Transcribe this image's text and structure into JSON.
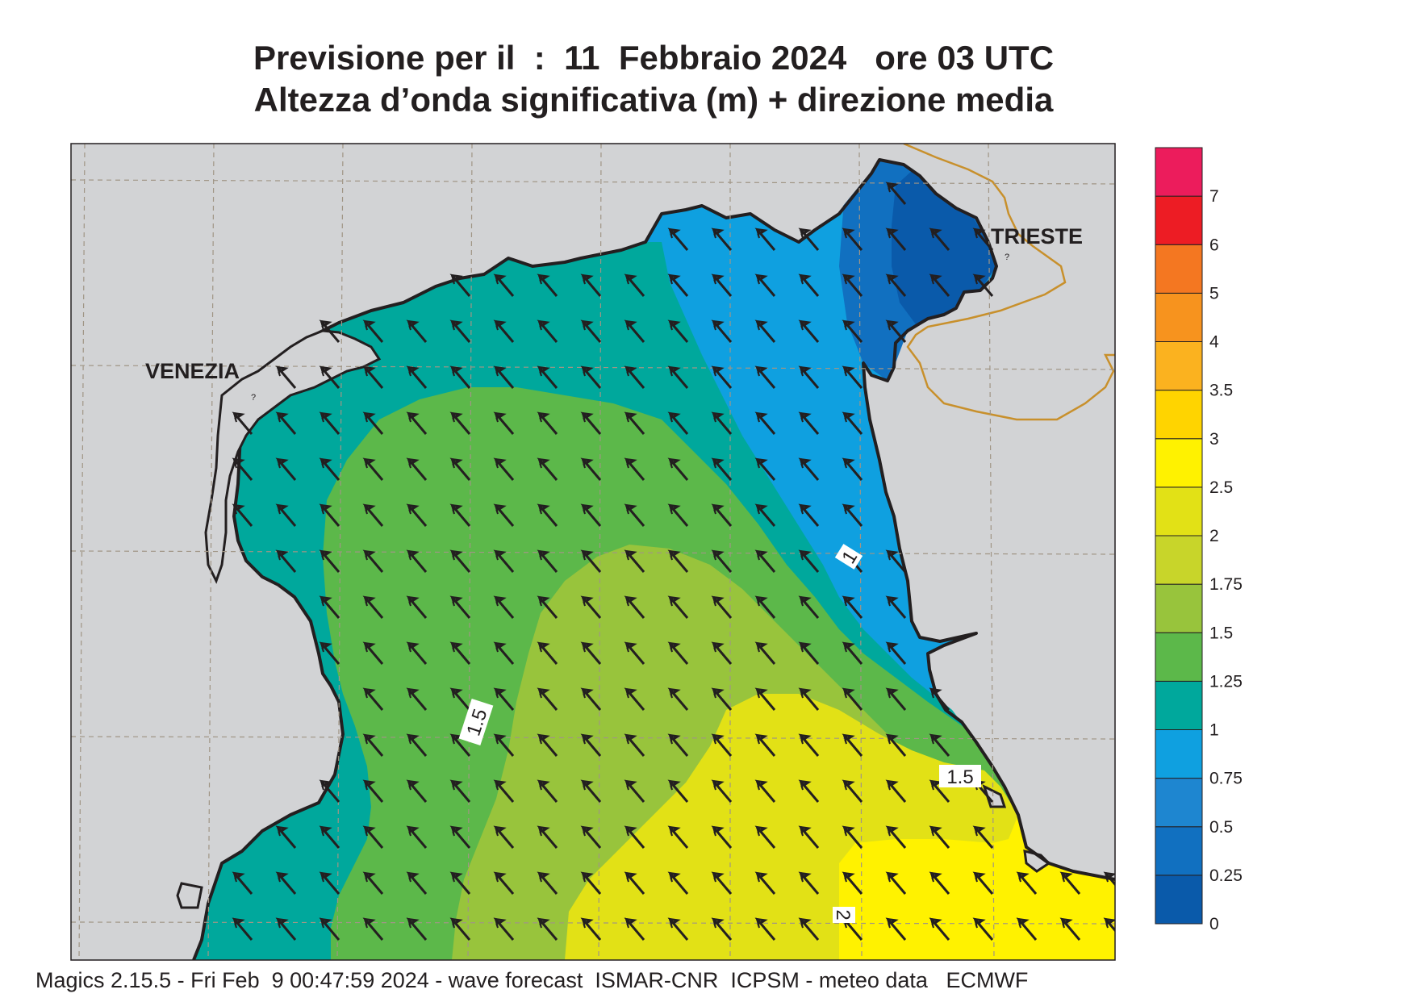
{
  "title": {
    "line1": "Previsione per il  :  11  Febbraio 2024   ore 03 UTC",
    "line2": "Altezza d’onda significativa (m) + direzione media"
  },
  "places": {
    "venezia": "VENEZIA",
    "trieste": "TRIESTE"
  },
  "contour_labels": [
    "1",
    "1.5",
    "1.5",
    "2"
  ],
  "colorbar": {
    "ticks": [
      "0",
      "0.25",
      "0.5",
      "0.75",
      "1",
      "1.25",
      "1.5",
      "1.75",
      "2",
      "2.5",
      "3",
      "3.5",
      "4",
      "5",
      "6",
      "7"
    ],
    "colors": [
      "#0a5aaa",
      "#1170c0",
      "#1e86d0",
      "#0fa0e0",
      "#00a89c",
      "#5cb84a",
      "#98c43c",
      "#c8d52a",
      "#e2e116",
      "#fff200",
      "#ffd400",
      "#fbb21f",
      "#f7931e",
      "#f47721",
      "#ed1c24",
      "#ec1c5c"
    ]
  },
  "map_colors": {
    "land": "#d2d3d5",
    "coast": "#231f20",
    "border": "#c8902c",
    "grid": "#a09585"
  },
  "wave_direction": "north-west",
  "footer": "Magics 2.15.5 - Fri Feb  9 00:47:59 2024 - wave forecast  ISMAR-CNR  ICPSM - meteo data   ECMWF"
}
